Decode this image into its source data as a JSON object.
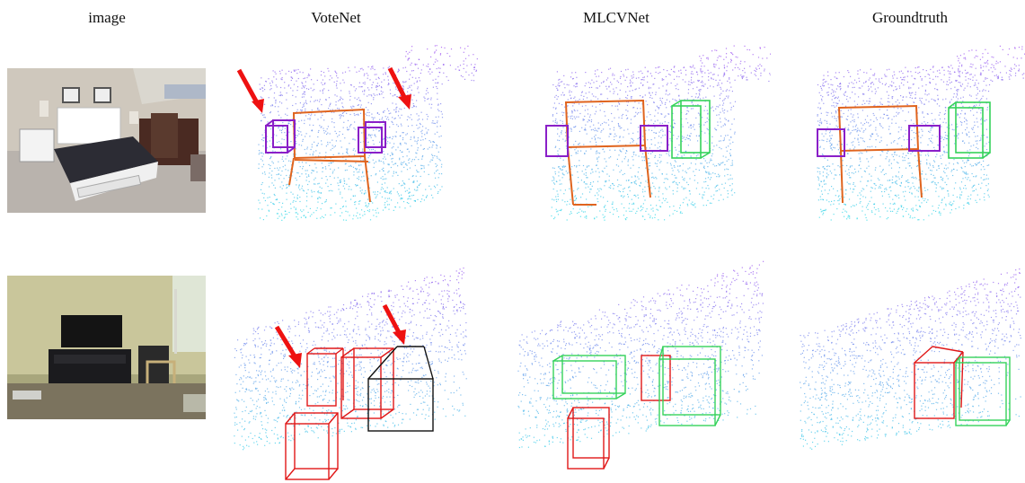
{
  "figure": {
    "columns": [
      {
        "id": "image",
        "label": "image"
      },
      {
        "id": "votenet",
        "label": "VoteNet"
      },
      {
        "id": "mlcvnet",
        "label": "MLCVNet"
      },
      {
        "id": "groundtruth",
        "label": "Groundtruth"
      }
    ],
    "rows": [
      {
        "id": "bedroom",
        "photo_desc": "bedroom-showroom-photo"
      },
      {
        "id": "livingroom",
        "photo_desc": "tv-room-photo"
      }
    ]
  },
  "colors": {
    "box_orange": "#e0641e",
    "box_purple": "#8a1fc8",
    "box_green": "#35d25a",
    "box_red": "#e01818",
    "box_black": "#111111",
    "arrow_red": "#ee1111",
    "cloud_top": "#a04cf0",
    "cloud_bottom": "#23e6e6"
  }
}
